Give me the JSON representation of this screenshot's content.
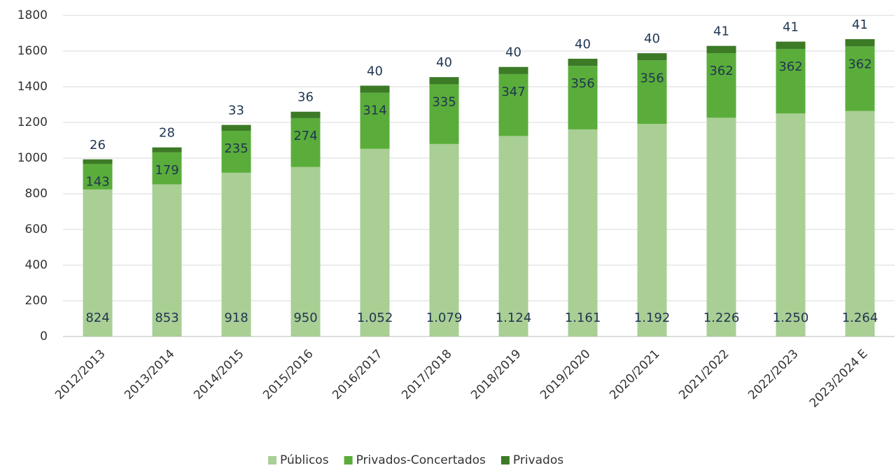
{
  "chart_data": {
    "type": "stacked_bar",
    "categories": [
      "2012/2013",
      "2013/2014",
      "2014/2015",
      "2015/2016",
      "2016/2017",
      "2017/2018",
      "2018/2019",
      "2019/2020",
      "2020/2021",
      "2021/2022",
      "2022/2023",
      "2023/2024 E"
    ],
    "series": [
      {
        "name": "Públicos",
        "color": "#a9cf95",
        "values": [
          824,
          853,
          918,
          950,
          1052,
          1079,
          1124,
          1161,
          1192,
          1226,
          1250,
          1264
        ],
        "value_labels": [
          "824",
          "853",
          "918",
          "950",
          "1.052",
          "1.079",
          "1.124",
          "1.161",
          "1.192",
          "1.226",
          "1.250",
          "1.264"
        ]
      },
      {
        "name": "Privados-Concertados",
        "color": "#5aad3a",
        "values": [
          143,
          179,
          235,
          274,
          314,
          335,
          347,
          356,
          356,
          362,
          362,
          362
        ]
      },
      {
        "name": "Privados",
        "color": "#3c7a26",
        "values": [
          26,
          28,
          33,
          36,
          40,
          40,
          40,
          40,
          40,
          41,
          41,
          41
        ]
      }
    ],
    "ylim": [
      0,
      1800
    ],
    "yticks": [
      0,
      200,
      400,
      600,
      800,
      1000,
      1200,
      1400,
      1600,
      1800
    ],
    "grid": true,
    "legend": "bottom"
  }
}
